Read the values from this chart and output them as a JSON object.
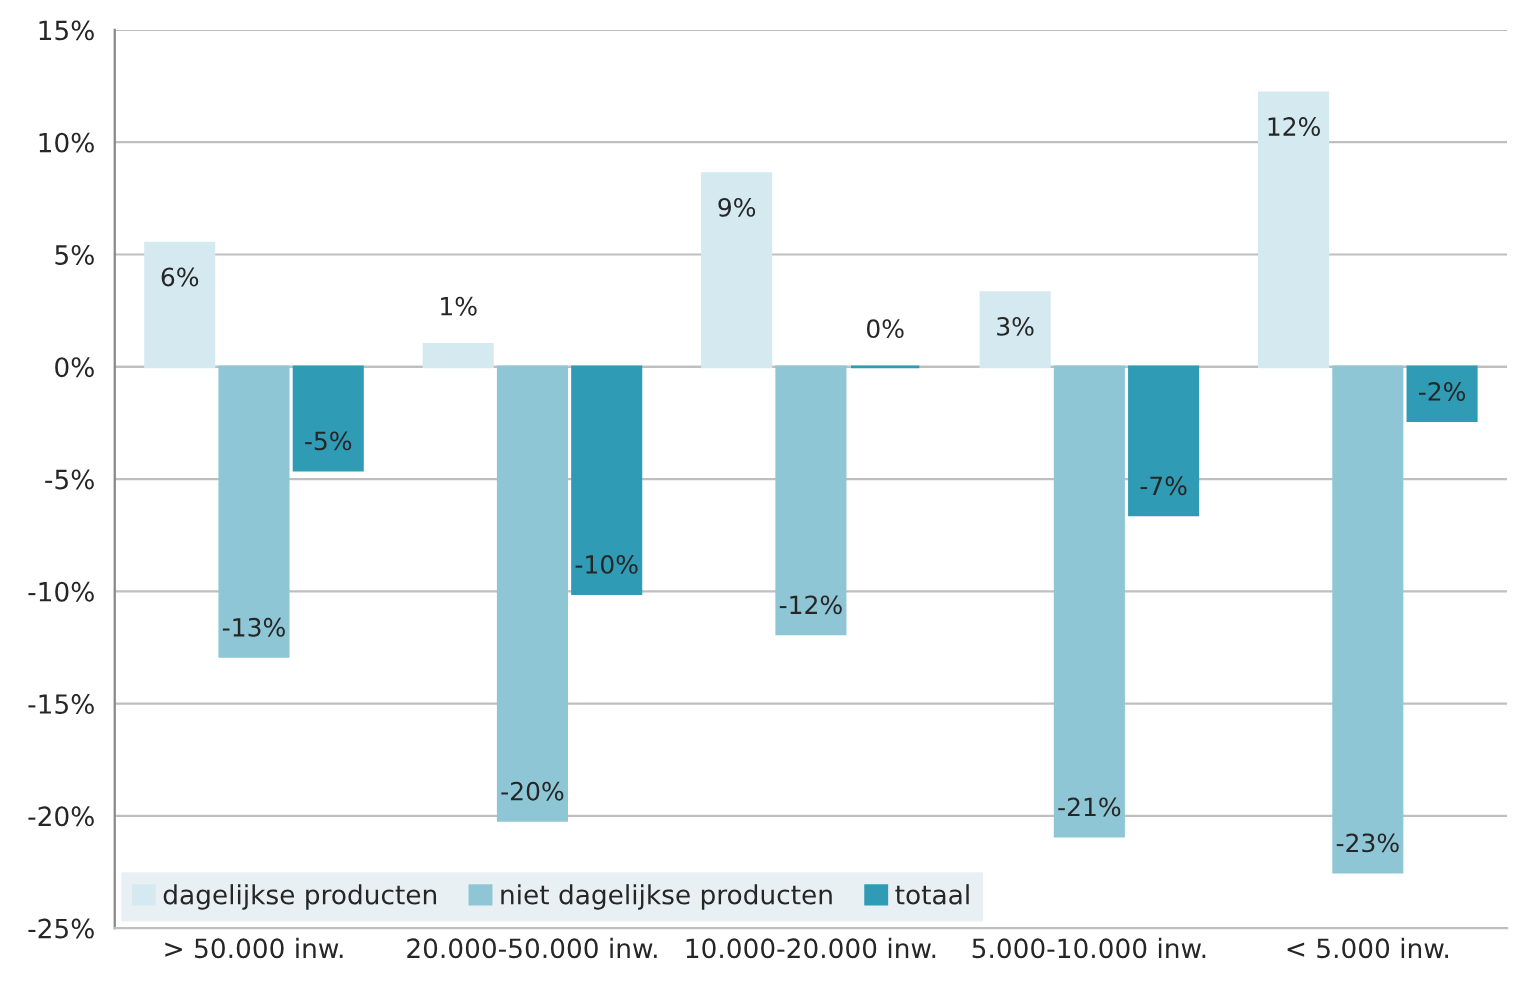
{
  "chart_data": {
    "type": "bar",
    "categories": [
      "> 50.000 inw.",
      "20.000-50.000 inw.",
      "10.000-20.000 inw.",
      "5.000-10.000 inw.",
      "< 5.000 inw."
    ],
    "series": [
      {
        "name": "dagelijkse producten",
        "color": "#d5e9f1",
        "values": [
          5.5,
          1.0,
          8.6,
          3.3,
          12.2
        ],
        "value_labels": [
          "6%",
          "1%",
          "9%",
          "3%",
          "12%"
        ]
      },
      {
        "name": "niet dagelijkse producten",
        "color": "#8ec6d6",
        "values": [
          -12.9,
          -20.2,
          -11.9,
          -20.9,
          -22.5
        ],
        "value_labels": [
          "-13%",
          "-20%",
          "-12%",
          "-21%",
          "-23%"
        ]
      },
      {
        "name": "totaal",
        "color": "#2f9bb5",
        "values": [
          -4.6,
          -10.1,
          0,
          -6.6,
          -2.4
        ],
        "value_labels": [
          "-5%",
          "-10%",
          "0%",
          "-7%",
          "-2%"
        ]
      }
    ],
    "ylim": [
      -25,
      15
    ],
    "yticks": [
      {
        "value": -25,
        "label": "-25%"
      },
      {
        "value": -20,
        "label": "-20%"
      },
      {
        "value": -15,
        "label": "-15%"
      },
      {
        "value": -10,
        "label": "-10%"
      },
      {
        "value": -5,
        "label": "-5%"
      },
      {
        "value": 0,
        "label": "0%"
      },
      {
        "value": 5,
        "label": "5%"
      },
      {
        "value": 10,
        "label": "10%"
      },
      {
        "value": 15,
        "label": "15%"
      }
    ],
    "grid": "y",
    "legend": "bottom left"
  }
}
